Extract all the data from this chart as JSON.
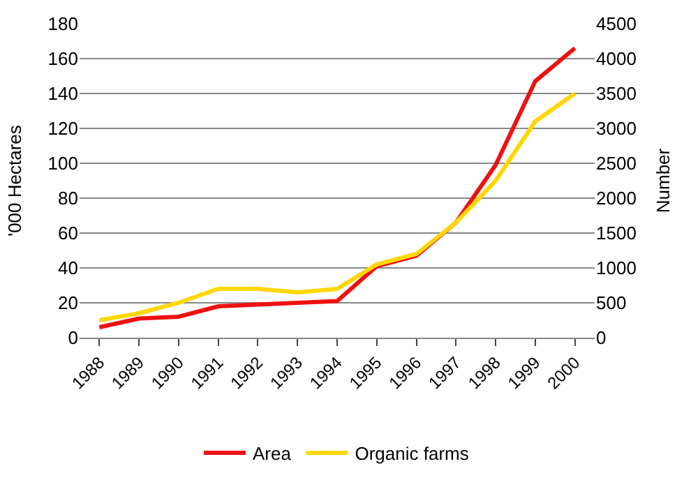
{
  "chart_data": {
    "type": "line",
    "ylabel": "'000 Hectares",
    "y2label": "Number",
    "categories": [
      "1988",
      "1989",
      "1990",
      "1991",
      "1992",
      "1993",
      "1994",
      "1995",
      "1996",
      "1997",
      "1998",
      "1999",
      "2000"
    ],
    "series": [
      {
        "name": "Area",
        "color": "#ee1111",
        "values": [
          6,
          11,
          12,
          18,
          19,
          20,
          21,
          41,
          47,
          66,
          99,
          147,
          166
        ]
      },
      {
        "name": "Organic farms",
        "color": "#ffd700",
        "axis": "y2",
        "values": [
          250,
          350,
          500,
          700,
          700,
          650,
          700,
          1050,
          1200,
          1650,
          2250,
          3100,
          3500
        ]
      }
    ],
    "ylim": [
      0,
      180
    ],
    "yticks": [
      0,
      20,
      40,
      60,
      80,
      100,
      120,
      140,
      160,
      180
    ],
    "y2lim": [
      0,
      4500
    ],
    "y2ticks": [
      0,
      500,
      1000,
      1500,
      2000,
      2500,
      3000,
      3500,
      4000,
      4500
    ],
    "grid": "y",
    "legend": "bottom",
    "marker": "none",
    "line_style": "solid"
  }
}
